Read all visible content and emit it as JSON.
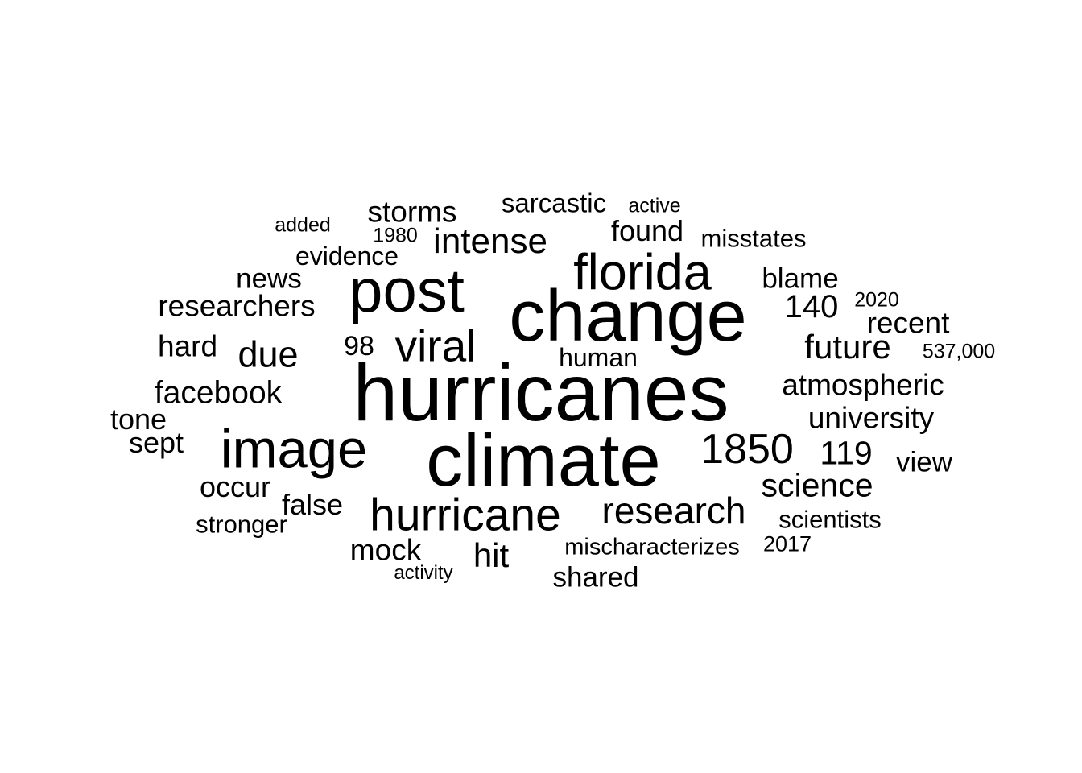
{
  "word_cloud": {
    "text_color": "#000000",
    "background_color": "#ffffff",
    "words": [
      {
        "text": "hurricanes",
        "weight": 100
      },
      {
        "text": "climate",
        "weight": 92
      },
      {
        "text": "change",
        "weight": 90
      },
      {
        "text": "post",
        "weight": 76
      },
      {
        "text": "image",
        "weight": 67
      },
      {
        "text": "florida",
        "weight": 63
      },
      {
        "text": "hurricane",
        "weight": 57
      },
      {
        "text": "viral",
        "weight": 55
      },
      {
        "text": "1850",
        "weight": 52
      },
      {
        "text": "research",
        "weight": 46
      },
      {
        "text": "due",
        "weight": 45
      },
      {
        "text": "intense",
        "weight": 44
      },
      {
        "text": "hit",
        "weight": 42
      },
      {
        "text": "future",
        "weight": 42
      },
      {
        "text": "science",
        "weight": 41
      },
      {
        "text": "119",
        "weight": 41
      },
      {
        "text": "140",
        "weight": 40
      },
      {
        "text": "facebook",
        "weight": 39
      },
      {
        "text": "storms",
        "weight": 37
      },
      {
        "text": "atmospheric",
        "weight": 37
      },
      {
        "text": "university",
        "weight": 37
      },
      {
        "text": "researchers",
        "weight": 37
      },
      {
        "text": "mock",
        "weight": 37
      },
      {
        "text": "recent",
        "weight": 37
      },
      {
        "text": "hard",
        "weight": 37
      },
      {
        "text": "found",
        "weight": 36
      },
      {
        "text": "tone",
        "weight": 36
      },
      {
        "text": "sept",
        "weight": 36
      },
      {
        "text": "occur",
        "weight": 36
      },
      {
        "text": "false",
        "weight": 36
      },
      {
        "text": "blame",
        "weight": 35
      },
      {
        "text": "view",
        "weight": 35
      },
      {
        "text": "news",
        "weight": 35
      },
      {
        "text": "shared",
        "weight": 35
      },
      {
        "text": "98",
        "weight": 34
      },
      {
        "text": "sarcastic",
        "weight": 33
      },
      {
        "text": "human",
        "weight": 32
      },
      {
        "text": "evidence",
        "weight": 32
      },
      {
        "text": "misstates",
        "weight": 31
      },
      {
        "text": "scientists",
        "weight": 31
      },
      {
        "text": "stronger",
        "weight": 31
      },
      {
        "text": "mischaracterizes",
        "weight": 29
      },
      {
        "text": "2017",
        "weight": 27
      },
      {
        "text": "2020",
        "weight": 25
      },
      {
        "text": "active",
        "weight": 25
      },
      {
        "text": "added",
        "weight": 25
      },
      {
        "text": "1980",
        "weight": 25
      },
      {
        "text": "537,000",
        "weight": 25
      },
      {
        "text": "activity",
        "weight": 24
      }
    ]
  }
}
